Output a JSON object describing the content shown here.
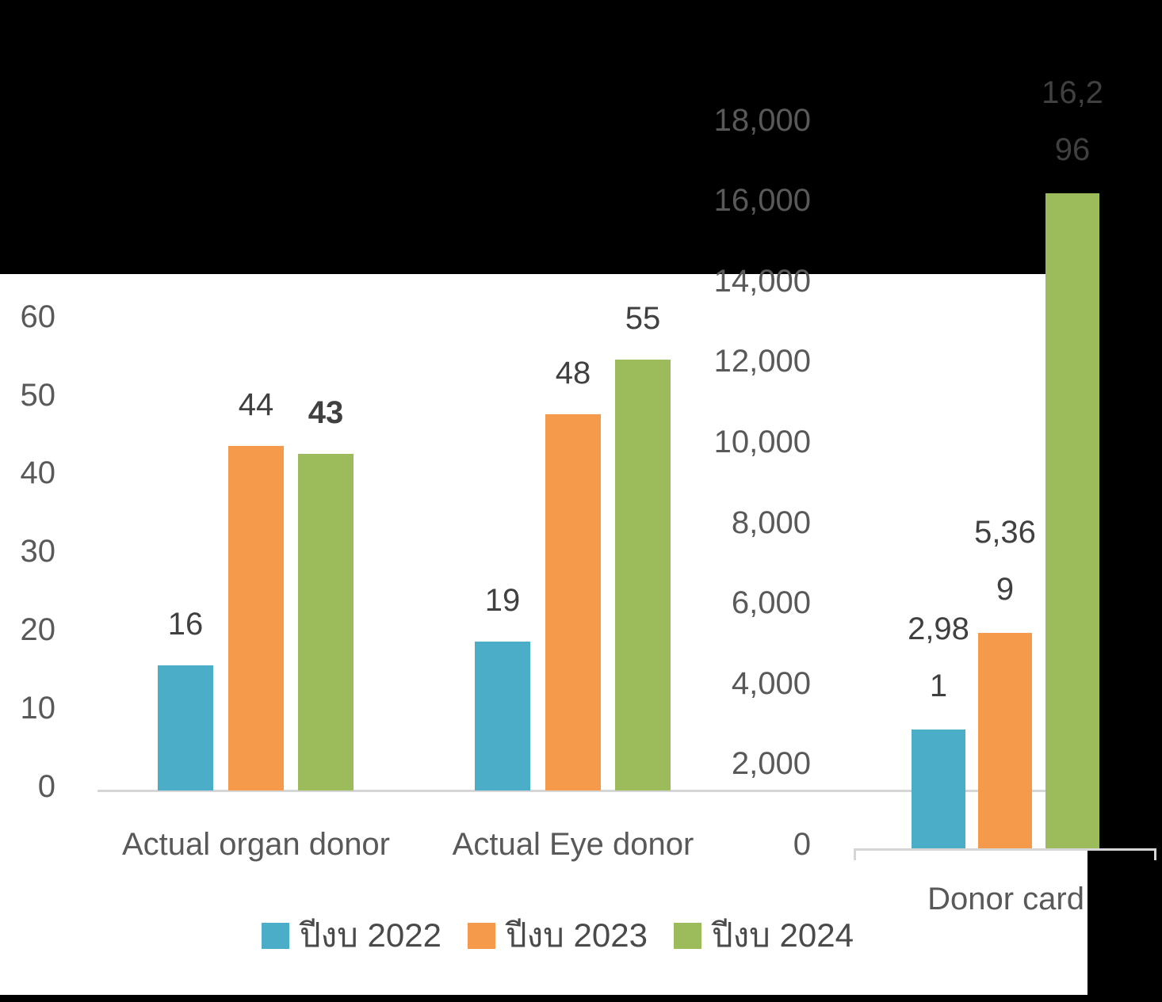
{
  "page": {
    "background": "#000000",
    "plot_background": "#FFFFFF"
  },
  "colors": {
    "series": [
      "#4BADC7",
      "#F5994A",
      "#9CBC5C"
    ],
    "axis_text": "#595959",
    "data_label_text": "#404040",
    "category_text": "#595959",
    "legend_text": "#4A4A4A",
    "axis_line": "#D6D6D6"
  },
  "legend": {
    "items": [
      {
        "label": "ปีงบ 2022",
        "color": "#4BADC7"
      },
      {
        "label": "ปีงบ 2023",
        "color": "#F5994A"
      },
      {
        "label": "ปีงบ 2024",
        "color": "#9CBC5C"
      }
    ]
  },
  "chart_data": [
    {
      "type": "bar",
      "name": "actual-donors-chart",
      "axis_side": "left",
      "categories": [
        "Actual organ donor",
        "Actual Eye donor"
      ],
      "series": [
        {
          "name": "ปีงบ 2022",
          "values": [
            16,
            19
          ]
        },
        {
          "name": "ปีงบ 2023",
          "values": [
            44,
            48
          ]
        },
        {
          "name": "ปีงบ 2024",
          "values": [
            43,
            55
          ]
        }
      ],
      "data_labels": [
        [
          "16",
          "19"
        ],
        [
          "44",
          "48"
        ],
        [
          "43",
          "55"
        ]
      ],
      "emphasized_labels": [
        "43"
      ],
      "ylim": [
        0,
        60
      ],
      "ytick_step": 10,
      "ytick_labels": [
        "0",
        "10",
        "20",
        "30",
        "40",
        "50",
        "60"
      ],
      "grid": false,
      "legend_position": "bottom"
    },
    {
      "type": "bar",
      "name": "donor-card-chart",
      "axis_side": "right",
      "categories": [
        "Donor card"
      ],
      "series": [
        {
          "name": "ปีงบ 2022",
          "values": [
            2981
          ]
        },
        {
          "name": "ปีงบ 2023",
          "values": [
            5369
          ]
        },
        {
          "name": "ปีงบ 2024",
          "values": [
            16296
          ]
        }
      ],
      "data_label_lines": [
        [
          [
            "2,98",
            "1"
          ]
        ],
        [
          [
            "5,36",
            "9"
          ]
        ],
        [
          [
            "16,2",
            "96"
          ]
        ]
      ],
      "ylim": [
        0,
        18000
      ],
      "ytick_step": 2000,
      "ytick_labels": [
        "0",
        "2,000",
        "4,000",
        "6,000",
        "8,000",
        "10,000",
        "12,000",
        "14,000",
        "16,000",
        "18,000"
      ],
      "grid": false,
      "legend_position": "bottom"
    }
  ]
}
